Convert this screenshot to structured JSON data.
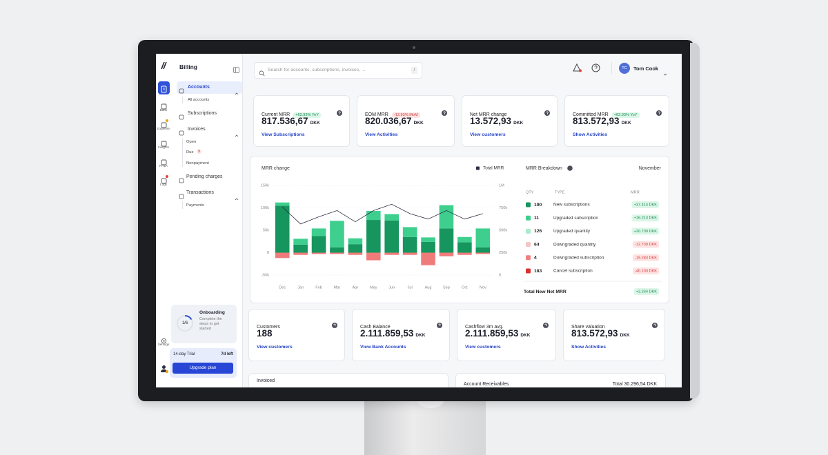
{
  "sidebar": {
    "nav_icons": [
      "Bank",
      "Expense",
      "Insights",
      "FP&A",
      "Logs"
    ],
    "settings": "Settings",
    "title": "Billing",
    "menu": {
      "accounts": "Accounts",
      "all_accounts": "All accounts",
      "subscriptions": "Subscriptions",
      "invoices": "Invoices",
      "open": "Open",
      "due": "Due",
      "due_count": "9",
      "nonpayment": "Nonpayment",
      "pending_charges": "Pending charges",
      "transactions": "Transactions",
      "payments": "Payments"
    },
    "onboarding": {
      "title": "Onboarding",
      "progress": "1/6",
      "text": "Complete the steps to get started"
    },
    "trial": {
      "label": "14-day Trial",
      "remaining": "7d left",
      "button": "Upgrade plan"
    }
  },
  "header": {
    "search_placeholder": "Search for accounts, subscriptions, invoices, ...",
    "shortcut": "/",
    "user_initials": "TC",
    "user_name": "Tom Cook"
  },
  "kpis": [
    {
      "title": "Current MRR",
      "badge": "+62.93% YoY",
      "value": "817.536,67",
      "unit": "DKK",
      "link": "View Subscriptions"
    },
    {
      "title": "EOM MRR",
      "badge": "-12.93% MoM",
      "value": "820.036,67",
      "unit": "DKK",
      "link": "View Activities"
    },
    {
      "title": "Net MRR change",
      "value": "13.572,93",
      "unit": "DKK",
      "link": "View customers"
    },
    {
      "title": "Committed MRR",
      "badge": "+62.93% YoY",
      "value": "813.572,93",
      "unit": "DKK",
      "link": "Show Activities"
    }
  ],
  "mrr_chart": {
    "type": "bar",
    "title": "MRR change",
    "categories": [
      "Dec",
      "Jan",
      "Feb",
      "Mar",
      "Apr",
      "May",
      "Jun",
      "Jul",
      "Aug",
      "Sep",
      "Oct",
      "Nov"
    ],
    "series": [
      {
        "color": "#17955e",
        "values": [
          105000,
          18000,
          37000,
          12000,
          19000,
          73000,
          72000,
          35000,
          24000,
          54000,
          23000,
          12000
        ]
      },
      {
        "color": "#3ecf8e",
        "values": [
          7000,
          13000,
          17000,
          59000,
          13000,
          20000,
          14000,
          22000,
          10000,
          52000,
          12000,
          42000
        ]
      },
      {
        "color": "#f07b7b",
        "values": [
          -12000,
          -5000,
          -3000,
          -3000,
          -5000,
          -17000,
          -5000,
          -5000,
          -28000,
          -8000,
          -5000,
          -3000
        ]
      },
      {
        "name": "Total MRR",
        "type": "line",
        "axis": "y2",
        "color": "#2b2e3f",
        "values": [
          760000,
          570000,
          650000,
          720000,
          595000,
          720000,
          790000,
          685000,
          625000,
          720000,
          625000,
          685000
        ]
      }
    ],
    "ylim": [
      -50000,
      150000
    ],
    "yticks": [
      {
        "value": 150000,
        "label": "150k"
      },
      {
        "value": 100000,
        "label": "100k"
      },
      {
        "value": 50000,
        "label": "50k"
      },
      0,
      {
        "value": -50000,
        "label": "-50k"
      }
    ],
    "y2lim": [
      0,
      1000000
    ],
    "y2ticks": [
      {
        "value": 1000000,
        "label": "1M"
      },
      {
        "value": 750000,
        "label": "750k"
      },
      {
        "value": 500000,
        "label": "500k"
      },
      {
        "value": 250000,
        "label": "250k"
      },
      0
    ],
    "grid": true
  },
  "breakdown": {
    "title": "MRR Breakdown",
    "period": "November",
    "columns": [
      "QTY",
      "TYPE",
      "MRR"
    ],
    "rows": [
      {
        "color": "#17955e",
        "qty": "190",
        "type": "New subscriptions",
        "mrr": "+37.414 DKK"
      },
      {
        "color": "#3ecf8e",
        "qty": "11",
        "type": "Upgraded subscription",
        "mrr": "+16.213 DKK"
      },
      {
        "color": "#a9ecca",
        "qty": "126",
        "type": "Upgraded quantity",
        "mrr": "+20.709 DKK"
      },
      {
        "color": "#f6c4c4",
        "qty": "64",
        "type": "Downgraded quantity",
        "mrr": "-12.730 DKK"
      },
      {
        "color": "#f08080",
        "qty": "4",
        "type": "Downgraded subscription",
        "mrr": "-19.283 DKK"
      },
      {
        "color": "#d8312f",
        "qty": "183",
        "type": "Cancel subscription",
        "mrr": "-40.103 DKK"
      }
    ],
    "total_label": "Total New Net MRR",
    "total": "+2.264 DKK"
  },
  "cards": [
    {
      "title": "Customers",
      "value": "188",
      "link": "View customers"
    },
    {
      "title": "Cash Balance",
      "value": "2.111.859,53",
      "unit": "DKK",
      "link": "View Bank Accounts"
    },
    {
      "title": "Cashflow 3m avg.",
      "value": "2.111.859,53",
      "unit": "DKK",
      "link": "View customers"
    },
    {
      "title": "Share valuation",
      "value": "813.572,93",
      "unit": "DKK",
      "link": "Show Activities"
    }
  ],
  "bottom": {
    "invoiced": "Invoiced",
    "receivables": "Account Receivables",
    "receivables_total": "Total 30.296,54 DKK"
  }
}
